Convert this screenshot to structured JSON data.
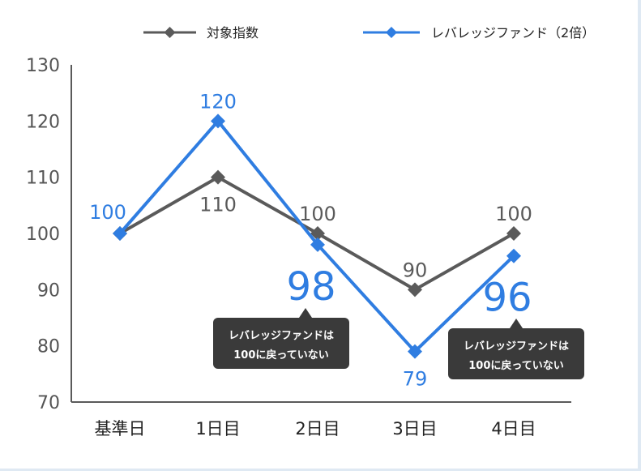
{
  "chart_data": {
    "type": "line",
    "categories": [
      "基準日",
      "1日目",
      "2日目",
      "3日目",
      "4日目"
    ],
    "ylim": [
      70,
      130
    ],
    "yticks": [
      70,
      80,
      90,
      100,
      110,
      120,
      130
    ],
    "grid": false,
    "legend_position": "top",
    "series": [
      {
        "name": "対象指数",
        "color": "#5a5a5a",
        "values": [
          100,
          110,
          100,
          90,
          100
        ],
        "data_labels": [
          "",
          "110",
          "100",
          "90",
          "100"
        ],
        "label_placement": [
          "none",
          "below",
          "above",
          "above",
          "above"
        ]
      },
      {
        "name": "レバレッジファンド（2倍）",
        "color": "#2f7de1",
        "values": [
          100,
          120,
          98,
          79,
          96
        ],
        "data_labels": [
          "100",
          "120",
          "98",
          "79",
          "96"
        ],
        "label_placement": [
          "above-left",
          "above",
          "big-below-right",
          "below",
          "big-below-right"
        ]
      }
    ],
    "annotations": [
      {
        "line1": "レバレッジファンドは",
        "line2": "100に戻っていない",
        "category_index": 2
      },
      {
        "line1": "レバレッジファンドは",
        "line2": "100に戻っていない",
        "category_index": 4
      }
    ]
  },
  "colors": {
    "axis": "#5a5a5a",
    "annotation_bg": "#3a3a3a",
    "annotation_text": "#ffffff"
  }
}
